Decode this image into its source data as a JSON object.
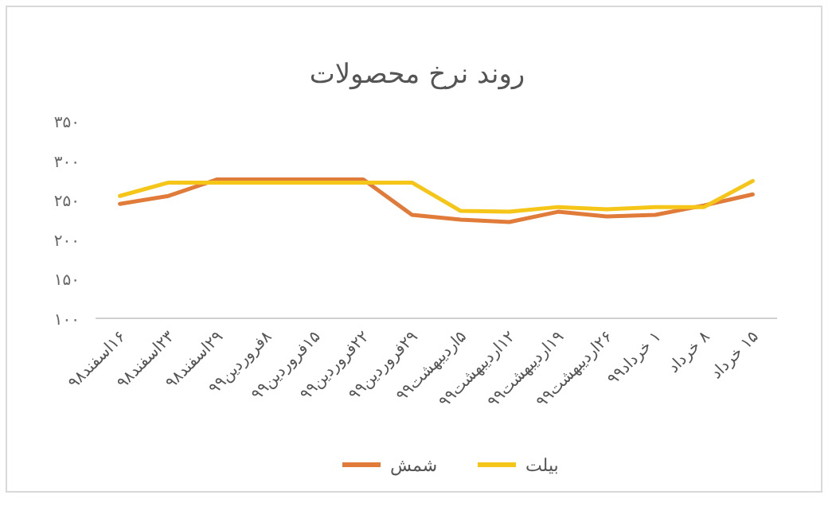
{
  "chart_data": {
    "type": "line",
    "title": "روند نرخ محصولات",
    "categories": [
      "۱۶اسفند۹۸",
      "۲۳اسفند۹۸",
      "۲۹اسفند۹۸",
      "۸فروردین۹۹",
      "۱۵فروردین۹۹",
      "۲۲فروردین۹۹",
      "۲۹فروردین۹۹",
      "۵اردیبهشت۹۹",
      "۱۲اردیبهشت۹۹",
      "۱۹اردیبهشت۹۹",
      "۲۶اردیبهشت۹۹",
      "۱ خرداد۹۹",
      "۸ خرداد",
      "۱۵ خرداد"
    ],
    "series": [
      {
        "name": "شمش",
        "color": "#e07b39",
        "values": [
          245,
          255,
          276,
          276,
          276,
          276,
          231,
          225,
          222,
          235,
          229,
          231,
          243,
          257
        ]
      },
      {
        "name": "بیلت",
        "color": "#f5c518",
        "values": [
          255,
          272,
          272,
          272,
          272,
          272,
          272,
          236,
          235,
          241,
          238,
          241,
          241,
          274
        ]
      }
    ],
    "ylim": [
      100,
      350
    ],
    "yticks": [
      {
        "value": 100,
        "label": "۱۰۰"
      },
      {
        "value": 150,
        "label": "۱۵۰"
      },
      {
        "value": 200,
        "label": "۲۰۰"
      },
      {
        "value": 250,
        "label": "۲۵۰"
      },
      {
        "value": 300,
        "label": "۳۰۰"
      },
      {
        "value": 350,
        "label": "۳۵۰"
      }
    ],
    "grid": false,
    "legend": "bottom",
    "marker": "none",
    "line_style": "solid"
  }
}
